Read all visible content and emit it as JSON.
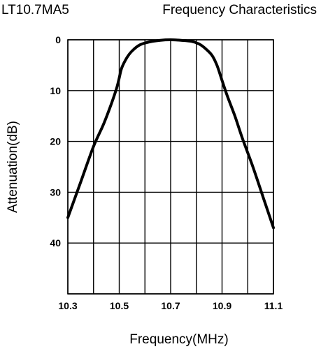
{
  "header": {
    "model": "LT10.7MA5",
    "title": "Frequency Characteristics"
  },
  "chart_data": {
    "type": "line",
    "title": "Frequency Characteristics",
    "xlabel": "Frequency(MHz)",
    "ylabel": "Attenuation(dB)",
    "xlim": [
      10.3,
      11.1
    ],
    "ylim": [
      0,
      50
    ],
    "y_inverted": true,
    "grid": true,
    "x_ticks": [
      10.3,
      10.4,
      10.5,
      10.6,
      10.7,
      10.8,
      10.9,
      11.0,
      11.1
    ],
    "x_tick_labels": [
      "10.3",
      "",
      "10.5",
      "",
      "10.7",
      "",
      "10.9",
      "",
      "11.1"
    ],
    "y_ticks": [
      0,
      10,
      20,
      30,
      40,
      50
    ],
    "y_tick_labels": [
      "0",
      "10",
      "20",
      "30",
      "40",
      ""
    ],
    "series": [
      {
        "x": [
          10.3,
          10.35,
          10.4,
          10.44,
          10.47,
          10.49,
          10.5,
          10.51,
          10.53,
          10.55,
          10.58,
          10.62,
          10.66,
          10.7,
          10.74,
          10.78,
          10.81,
          10.83,
          10.86,
          10.88,
          10.9,
          10.92,
          10.95,
          10.98,
          11.02,
          11.06,
          11.1
        ],
        "values": [
          35,
          28,
          21,
          16.5,
          12.5,
          9.5,
          7.5,
          5.5,
          3.5,
          2.2,
          1,
          0.4,
          0.1,
          0,
          0.1,
          0.3,
          0.8,
          1.5,
          3,
          5,
          8,
          11,
          15,
          19.5,
          25,
          31,
          37
        ]
      }
    ]
  }
}
